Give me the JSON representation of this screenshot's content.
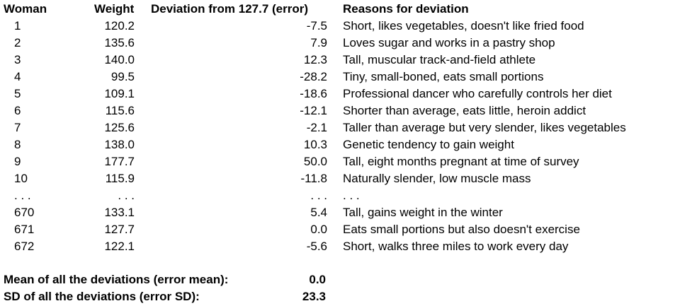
{
  "table": {
    "header": [
      "Woman",
      "Weight",
      "Deviation from 127.7 (error)",
      "Reasons for deviation"
    ],
    "rows": [
      [
        "1",
        "120.2",
        "-7.5",
        "Short, likes vegetables, doesn't like fried food"
      ],
      [
        "2",
        "135.6",
        "7.9",
        "Loves sugar and works in a pastry shop"
      ],
      [
        "3",
        "140.0",
        "12.3",
        "Tall, muscular track-and-field athlete"
      ],
      [
        "4",
        "99.5",
        "-28.2",
        "Tiny, small-boned, eats small portions"
      ],
      [
        "5",
        "109.1",
        "-18.6",
        "Professional dancer who carefully controls her diet"
      ],
      [
        "6",
        "115.6",
        "-12.1",
        "Shorter than average, eats little, heroin addict"
      ],
      [
        "7",
        "125.6",
        "-2.1",
        "Taller than average but very slender, likes vegetables"
      ],
      [
        "8",
        "138.0",
        "10.3",
        "Genetic tendency to gain weight"
      ],
      [
        "9",
        "177.7",
        "50.0",
        "Tall, eight months pregnant at time of survey"
      ],
      [
        "10",
        "115.9",
        "-11.8",
        "Naturally slender, low muscle mass"
      ],
      [
        ". . .",
        ". . .",
        ". . .",
        ". . ."
      ],
      [
        "670",
        "133.1",
        "5.4",
        "Tall, gains weight in the winter"
      ],
      [
        "671",
        "127.7",
        "0.0",
        "Eats small portions but also doesn't exercise"
      ],
      [
        "672",
        "122.1",
        "-5.6",
        "Short, walks three miles to work every day"
      ]
    ],
    "summary": [
      [
        "Mean of all the deviations (error mean):",
        "0.0"
      ],
      [
        "SD of all the deviations (error SD):",
        "23.3"
      ]
    ]
  }
}
